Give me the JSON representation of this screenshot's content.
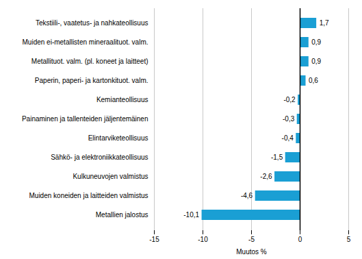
{
  "chart_data": {
    "type": "bar",
    "orientation": "horizontal",
    "categories": [
      "Metallien jalostus",
      "Muiden koneiden ja laitteiden valmistus",
      "Kulkuneuvojen valmistus",
      "Sähkö- ja elektroniikkateollisuus",
      "Elintarviketeollisuus",
      "Painaminen ja tallenteiden jäljentemäinen",
      "Kemianteollisuus",
      "Paperin, paperi- ja kartonkituot. valm.",
      "Metallituot. valm. (pl. koneet ja laitteet)",
      "Muiden ei-metallisten mineraalituot. valm.",
      "Tekstiili-, vaatetus- ja nahkateollisuus"
    ],
    "values": [
      -10.1,
      -4.6,
      -2.6,
      -1.5,
      -0.4,
      -0.3,
      -0.2,
      0.6,
      0.9,
      0.9,
      1.7
    ],
    "value_labels": [
      "-10,1",
      "-4,6",
      "-2,6",
      "-1,5",
      "-0,4",
      "-0,3",
      "-0,2",
      "0,6",
      "0,9",
      "0,9",
      "1,7"
    ],
    "data_labels": true,
    "color": "#1a9fd4",
    "xlabel": "Muutos %",
    "xlim": [
      -15,
      5
    ],
    "xticks": [
      -15,
      -10,
      -5,
      0,
      5
    ],
    "grid": true
  }
}
